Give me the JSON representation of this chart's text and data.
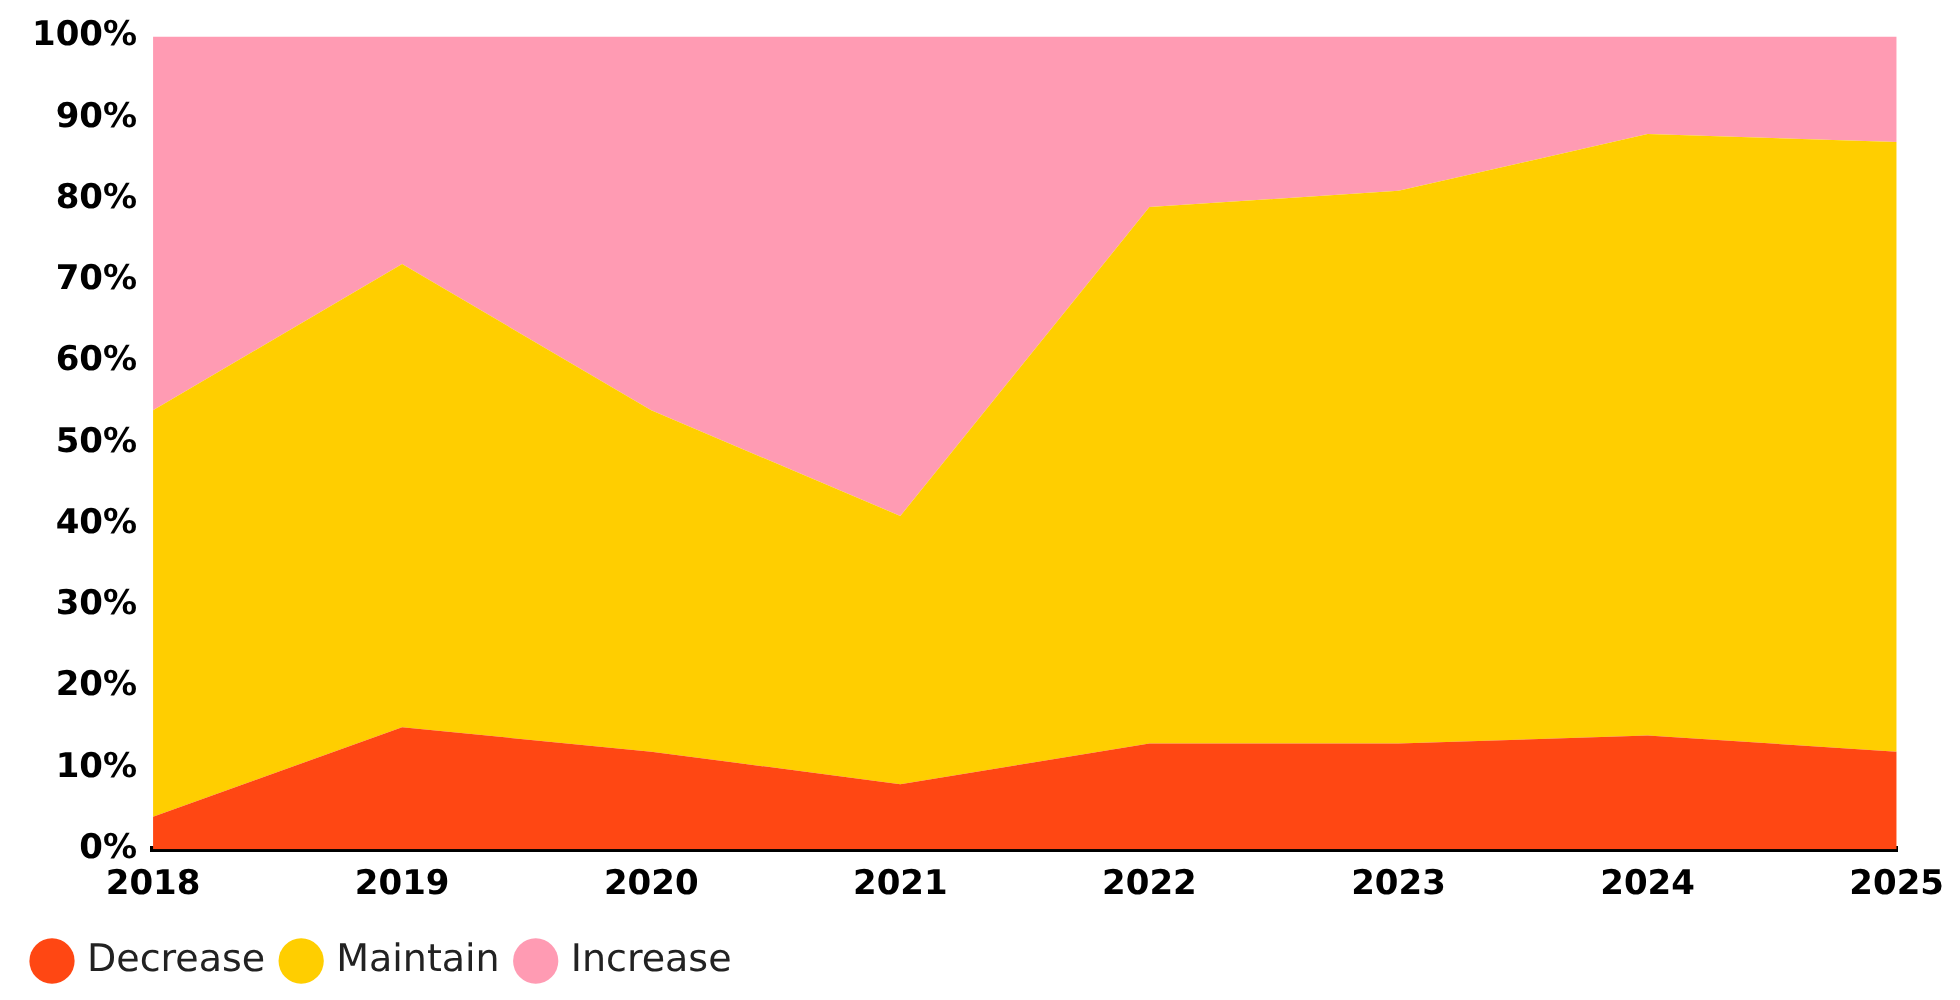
{
  "chart_data": {
    "type": "area",
    "stacked": true,
    "categories": [
      "2018",
      "2019",
      "2020",
      "2021",
      "2022",
      "2023",
      "2024",
      "2025"
    ],
    "series": [
      {
        "name": "Decrease",
        "color": "#ff4713",
        "values": [
          4,
          15,
          12,
          8,
          13,
          13,
          14,
          12
        ]
      },
      {
        "name": "Maintain",
        "color": "#ffce00",
        "values": [
          50,
          57,
          42,
          33,
          66,
          68,
          74,
          75
        ]
      },
      {
        "name": "Increase",
        "color": "#ff9bb3",
        "values": [
          46,
          28,
          46,
          59,
          21,
          19,
          12,
          13
        ]
      }
    ],
    "ylim": [
      0,
      100
    ],
    "yticks": [
      {
        "value": 0,
        "label": "0%"
      },
      {
        "value": 10,
        "label": "10%"
      },
      {
        "value": 20,
        "label": "20%"
      },
      {
        "value": 30,
        "label": "30%"
      },
      {
        "value": 40,
        "label": "40%"
      },
      {
        "value": 50,
        "label": "50%"
      },
      {
        "value": 60,
        "label": "60%"
      },
      {
        "value": 70,
        "label": "70%"
      },
      {
        "value": 80,
        "label": "80%"
      },
      {
        "value": 90,
        "label": "90%"
      },
      {
        "value": 100,
        "label": "100%"
      }
    ],
    "grid": false,
    "legend": "bottom left",
    "marker": "none"
  }
}
